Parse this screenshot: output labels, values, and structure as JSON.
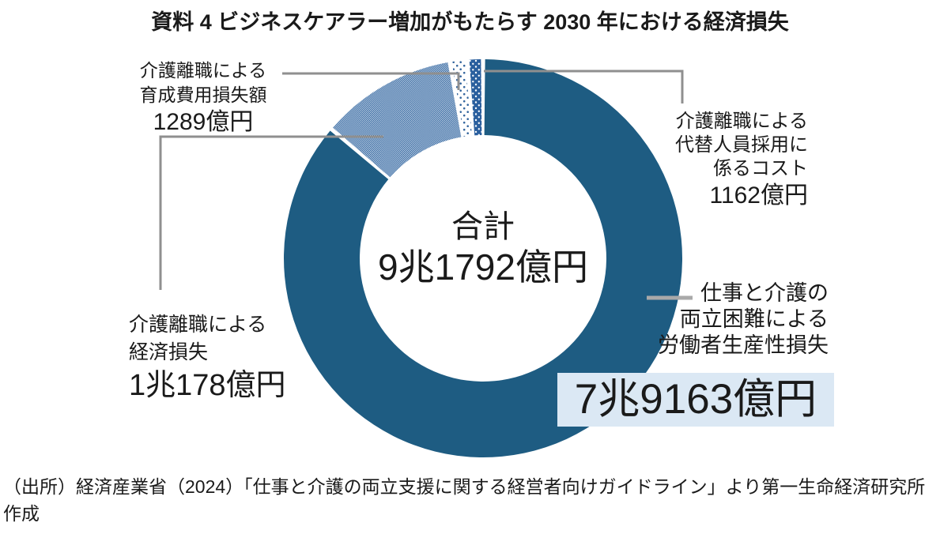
{
  "title": "資料 4 ビジネスケアラー増加がもたらす 2030 年における経済損失",
  "center": {
    "label": "合計",
    "value": "9兆1792億円"
  },
  "annotations": {
    "training": {
      "lines": [
        "介護離職による",
        "育成費用損失額"
      ],
      "value": "1289億円"
    },
    "hiring": {
      "lines": [
        "介護離職による",
        "代替人員採用に",
        "係るコスト"
      ],
      "value": "1162億円"
    },
    "economic": {
      "lines": [
        "介護離職による",
        "経済損失"
      ],
      "value": "1兆178億円"
    },
    "productivity": {
      "lines": [
        "仕事と介護の",
        "両立困難による",
        "労働者生産性損失"
      ],
      "value": "7兆9163億円"
    }
  },
  "source": {
    "line1": "（出所）経済産業省（2024）「仕事と介護の両立支援に関する経営者向けガイドライン」より第一生命経済研究所",
    "line2": "作成"
  },
  "colors": {
    "solid_segment": "#1e5c82",
    "dark_dotted_segment": "#2a5f9e",
    "pattern_dot": "#33659e",
    "dense_pattern_bg": "#c0d2e5",
    "highlight_bg": "#dbe8f4",
    "leader_line": "#8f8f8f",
    "dash_line": "#a9a9a9",
    "text": "#1a1a1a"
  },
  "chart_data": {
    "type": "pie",
    "subtype": "donut",
    "title": "資料 4 ビジネスケアラー増加がもたらす 2030 年における経済損失",
    "unit": "億円",
    "total": 91792,
    "total_label": "合計",
    "total_value_text": "9兆1792億円",
    "start_angle_deg": 0,
    "direction": "clockwise",
    "legend_position": "callout-labels",
    "segments": [
      {
        "label": "仕事と介護の両立困難による労働者生産性損失",
        "value": 79163,
        "value_text": "7兆9163億円",
        "share_pct": 86.2,
        "style": "solid"
      },
      {
        "label": "介護離職による経済損失",
        "value": 10178,
        "value_text": "1兆178億円",
        "share_pct": 11.1,
        "style": "dense-dots"
      },
      {
        "label": "介護離職による育成費用損失額",
        "value": 1289,
        "value_text": "1289億円",
        "share_pct": 1.4,
        "style": "sparse-dots"
      },
      {
        "label": "介護離職による代替人員採用に係るコスト",
        "value": 1162,
        "value_text": "1162億円",
        "share_pct": 1.3,
        "style": "white-dots-on-dark"
      }
    ]
  }
}
